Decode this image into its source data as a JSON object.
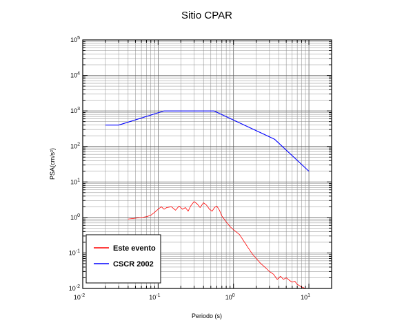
{
  "chart_data": {
    "type": "line",
    "title": "Sitio CPAR",
    "xlabel": "Periodo (s)",
    "ylabel": "PSA(cm/s²)",
    "xscale": "log",
    "yscale": "log",
    "xlim": [
      0.01,
      20
    ],
    "ylim": [
      0.01,
      100000
    ],
    "grid": true,
    "legend_position": "bottom-left",
    "x_ticks": [
      {
        "base": "10",
        "exp": "-2",
        "value": 0.01
      },
      {
        "base": "10",
        "exp": "-1",
        "value": 0.1
      },
      {
        "base": "10",
        "exp": "0",
        "value": 1
      },
      {
        "base": "10",
        "exp": "1",
        "value": 10
      }
    ],
    "y_ticks": [
      {
        "base": "10",
        "exp": "-2",
        "value": 0.01
      },
      {
        "base": "10",
        "exp": "-1",
        "value": 0.1
      },
      {
        "base": "10",
        "exp": "0",
        "value": 1
      },
      {
        "base": "10",
        "exp": "1",
        "value": 10
      },
      {
        "base": "10",
        "exp": "2",
        "value": 100
      },
      {
        "base": "10",
        "exp": "3",
        "value": 1000
      },
      {
        "base": "10",
        "exp": "4",
        "value": 10000
      },
      {
        "base": "10",
        "exp": "5",
        "value": 100000
      }
    ],
    "series": [
      {
        "name": "Este evento",
        "color": "#ff0000",
        "points": [
          [
            0.04,
            0.9
          ],
          [
            0.05,
            0.95
          ],
          [
            0.06,
            1.0
          ],
          [
            0.07,
            1.05
          ],
          [
            0.08,
            1.15
          ],
          [
            0.09,
            1.4
          ],
          [
            0.1,
            1.7
          ],
          [
            0.11,
            2.0
          ],
          [
            0.12,
            1.7
          ],
          [
            0.13,
            1.9
          ],
          [
            0.15,
            2.0
          ],
          [
            0.17,
            1.6
          ],
          [
            0.19,
            2.1
          ],
          [
            0.21,
            1.7
          ],
          [
            0.23,
            1.9
          ],
          [
            0.25,
            1.5
          ],
          [
            0.27,
            2.1
          ],
          [
            0.3,
            2.8
          ],
          [
            0.33,
            2.4
          ],
          [
            0.36,
            1.9
          ],
          [
            0.4,
            2.6
          ],
          [
            0.44,
            2.2
          ],
          [
            0.48,
            1.7
          ],
          [
            0.52,
            1.5
          ],
          [
            0.56,
            1.9
          ],
          [
            0.6,
            2.1
          ],
          [
            0.65,
            1.6
          ],
          [
            0.7,
            1.1
          ],
          [
            0.8,
            0.75
          ],
          [
            0.9,
            0.55
          ],
          [
            1.0,
            0.45
          ],
          [
            1.2,
            0.33
          ],
          [
            1.4,
            0.2
          ],
          [
            1.6,
            0.13
          ],
          [
            1.8,
            0.09
          ],
          [
            2.0,
            0.07
          ],
          [
            2.3,
            0.05
          ],
          [
            2.6,
            0.04
          ],
          [
            3.0,
            0.03
          ],
          [
            3.4,
            0.025
          ],
          [
            3.8,
            0.018
          ],
          [
            4.2,
            0.022
          ],
          [
            4.6,
            0.018
          ],
          [
            5.0,
            0.02
          ],
          [
            5.5,
            0.017
          ],
          [
            6.0,
            0.015
          ],
          [
            6.5,
            0.016
          ],
          [
            7.0,
            0.013
          ],
          [
            7.5,
            0.012
          ],
          [
            8.0,
            0.011
          ],
          [
            9.0,
            0.01
          ]
        ]
      },
      {
        "name": "CSCR 2002",
        "color": "#0000ff",
        "points": [
          [
            0.02,
            400
          ],
          [
            0.03,
            400
          ],
          [
            0.12,
            1000
          ],
          [
            0.55,
            1000
          ],
          [
            3.5,
            160
          ],
          [
            10,
            20
          ]
        ]
      }
    ]
  }
}
